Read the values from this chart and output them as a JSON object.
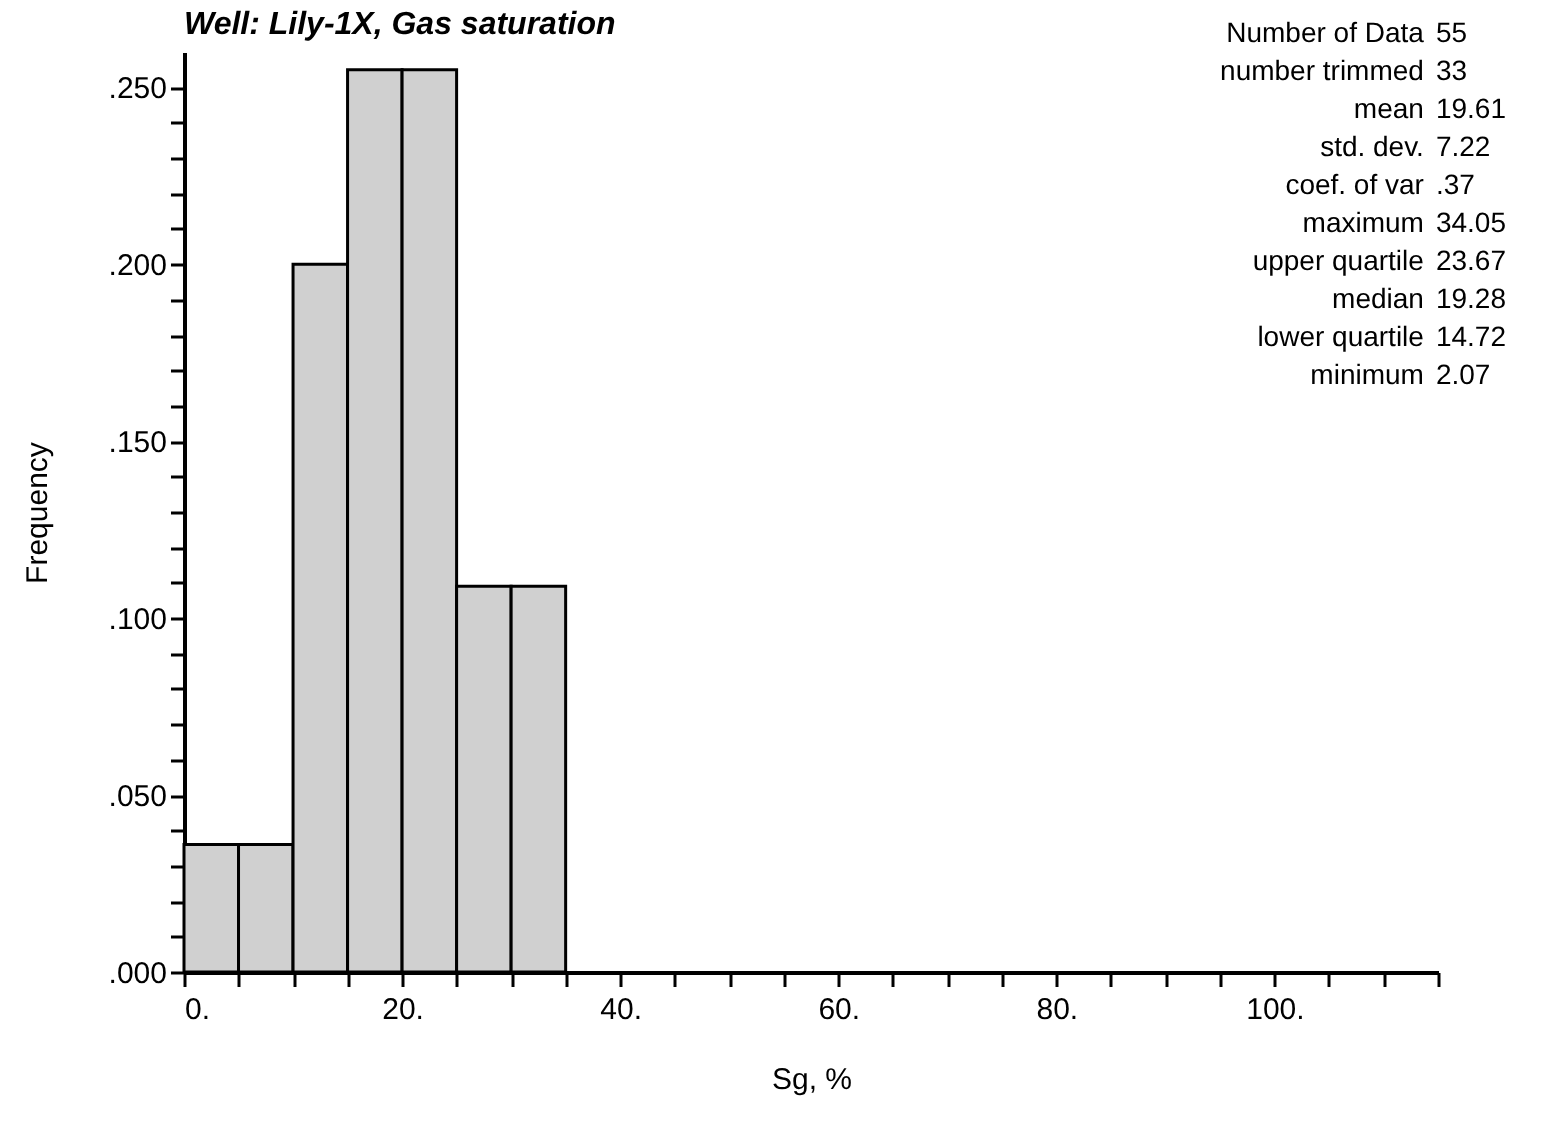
{
  "chart_data": {
    "type": "histogram",
    "title": "Well: Lily-1X, Gas saturation",
    "xlabel": "Sg, %",
    "ylabel": "Frequency",
    "bins": [
      0,
      5,
      10,
      15,
      20,
      25,
      30,
      35
    ],
    "values": [
      0.036,
      0.036,
      0.2,
      0.255,
      0.255,
      0.109,
      0.109
    ],
    "color": "#d0d0d0",
    "xlim": [
      0,
      115
    ],
    "xticks": [
      {
        "value": 0,
        "label": "0."
      },
      {
        "value": 5,
        "label": null
      },
      {
        "value": 10,
        "label": null
      },
      {
        "value": 15,
        "label": null
      },
      {
        "value": 20,
        "label": "20."
      },
      {
        "value": 25,
        "label": null
      },
      {
        "value": 30,
        "label": null
      },
      {
        "value": 35,
        "label": null
      },
      {
        "value": 40,
        "label": "40."
      },
      {
        "value": 45,
        "label": null
      },
      {
        "value": 50,
        "label": null
      },
      {
        "value": 55,
        "label": null
      },
      {
        "value": 60,
        "label": "60."
      },
      {
        "value": 65,
        "label": null
      },
      {
        "value": 70,
        "label": null
      },
      {
        "value": 75,
        "label": null
      },
      {
        "value": 80,
        "label": "80."
      },
      {
        "value": 85,
        "label": null
      },
      {
        "value": 90,
        "label": null
      },
      {
        "value": 95,
        "label": null
      },
      {
        "value": 100,
        "label": "100."
      },
      {
        "value": 105,
        "label": null
      },
      {
        "value": 110,
        "label": null
      },
      {
        "value": 115,
        "label": null
      }
    ],
    "ylim": [
      0,
      0.26
    ],
    "yticks": [
      {
        "value": 0,
        "label": ".000"
      },
      {
        "value": 0.01,
        "label": null
      },
      {
        "value": 0.02,
        "label": null
      },
      {
        "value": 0.03,
        "label": null
      },
      {
        "value": 0.04,
        "label": null
      },
      {
        "value": 0.05,
        "label": ".050"
      },
      {
        "value": 0.06,
        "label": null
      },
      {
        "value": 0.07,
        "label": null
      },
      {
        "value": 0.08,
        "label": null
      },
      {
        "value": 0.09,
        "label": null
      },
      {
        "value": 0.1,
        "label": ".100"
      },
      {
        "value": 0.11,
        "label": null
      },
      {
        "value": 0.12,
        "label": null
      },
      {
        "value": 0.13,
        "label": null
      },
      {
        "value": 0.14,
        "label": null
      },
      {
        "value": 0.15,
        "label": ".150"
      },
      {
        "value": 0.16,
        "label": null
      },
      {
        "value": 0.17,
        "label": null
      },
      {
        "value": 0.18,
        "label": null
      },
      {
        "value": 0.19,
        "label": null
      },
      {
        "value": 0.2,
        "label": ".200"
      },
      {
        "value": 0.21,
        "label": null
      },
      {
        "value": 0.22,
        "label": null
      },
      {
        "value": 0.23,
        "label": null
      },
      {
        "value": 0.24,
        "label": null
      },
      {
        "value": 0.25,
        "label": ".250"
      }
    ],
    "grid": false,
    "annotations": [
      "Number of Data 55",
      "number trimmed 33",
      "mean 19.61",
      "std. dev. 7.22",
      "coef. of var .37",
      "maximum 34.05",
      "upper quartile 23.67",
      "median 19.28",
      "lower quartile 14.72",
      "minimum 2.07"
    ]
  }
}
